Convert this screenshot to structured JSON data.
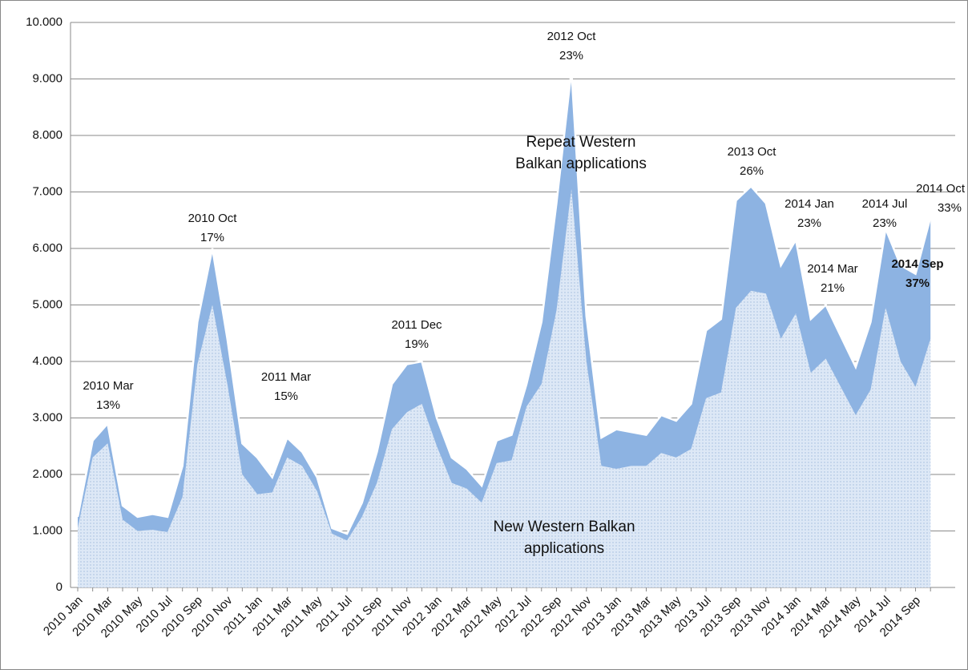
{
  "chart_data": {
    "type": "stacked_area",
    "categories": [
      "2010 Jan",
      null,
      "2010 Mar",
      null,
      "2010 May",
      null,
      "2010 Jul",
      null,
      "2010 Sep",
      null,
      "2010 Nov",
      null,
      "2011 Jan",
      null,
      "2011 Mar",
      null,
      "2011 May",
      null,
      "2011 Jul",
      null,
      "2011 Sep",
      null,
      "2011 Nov",
      null,
      "2012 Jan",
      null,
      "2012 Mar",
      null,
      "2012 May",
      null,
      "2012 Jul",
      null,
      "2012 Sep",
      null,
      "2012 Nov",
      null,
      "2013 Jan",
      null,
      "2013 Mar",
      null,
      "2013 May",
      null,
      "2013 Jul",
      null,
      "2013 Sep",
      null,
      "2013 Nov",
      null,
      "2014 Jan",
      null,
      "2014 Mar",
      null,
      "2014 May",
      null,
      "2014 Jul",
      null,
      "2014 Sep",
      null
    ],
    "series": [
      {
        "name": [
          "New Western Balkan",
          "applications"
        ],
        "color": "#dde8f6",
        "values": [
          1050,
          2300,
          2550,
          1200,
          1000,
          1020,
          980,
          1600,
          3950,
          5000,
          3600,
          2000,
          1650,
          1680,
          2300,
          2150,
          1700,
          950,
          830,
          1250,
          1850,
          2800,
          3100,
          3250,
          2500,
          1850,
          1750,
          1500,
          2200,
          2250,
          3200,
          3600,
          4900,
          7050,
          4000,
          2150,
          2100,
          2150,
          2150,
          2380,
          2300,
          2450,
          3350,
          3450,
          4950,
          5250,
          5200,
          4400,
          4850,
          3800,
          4050,
          3550,
          3050,
          3500,
          4950,
          4000,
          3550,
          4400
        ]
      },
      {
        "name": [
          "Repeat Western",
          "Balkan applications"
        ],
        "color": "#8db3e2",
        "values": [
          200,
          300,
          350,
          250,
          250,
          280,
          270,
          550,
          750,
          1000,
          800,
          550,
          650,
          270,
          350,
          250,
          250,
          100,
          120,
          250,
          550,
          800,
          850,
          750,
          500,
          450,
          350,
          300,
          400,
          450,
          400,
          1100,
          1900,
          2100,
          800,
          500,
          700,
          600,
          550,
          670,
          650,
          800,
          1200,
          1300,
          1900,
          1850,
          1600,
          1300,
          1300,
          950,
          950,
          900,
          850,
          1200,
          1400,
          1700,
          2000,
          2150
        ]
      }
    ],
    "annotations": [
      {
        "label": "2010 Mar",
        "share": "13%"
      },
      {
        "label": "2010 Oct",
        "share": "17%"
      },
      {
        "label": "2011 Mar",
        "share": "15%"
      },
      {
        "label": "2011 Dec",
        "share": "19%"
      },
      {
        "label": "2012 Oct",
        "share": "23%"
      },
      {
        "label": "2013 Oct",
        "share": "26%"
      },
      {
        "label": "2014 Jan",
        "share": "23%"
      },
      {
        "label": "2014 Mar",
        "share": "21%"
      },
      {
        "label": "2014 Jul",
        "share": "23%"
      },
      {
        "label": "2014 Oct",
        "share": "33%"
      },
      {
        "label": "2014 Sep",
        "share": "37%",
        "color": "#c00000"
      }
    ],
    "ylim": [
      0,
      10000
    ],
    "yticks": [
      0,
      {
        "value": 1000,
        "label": "1.000"
      },
      {
        "value": 2000,
        "label": "2.000"
      },
      {
        "value": 3000,
        "label": "3.000"
      },
      {
        "value": 4000,
        "label": "4.000"
      },
      {
        "value": 5000,
        "label": "5.000"
      },
      {
        "value": 6000,
        "label": "6.000"
      },
      {
        "value": 7000,
        "label": "7.000"
      },
      {
        "value": 8000,
        "label": "8.000"
      },
      {
        "value": 9000,
        "label": "9.000"
      },
      {
        "value": 10000,
        "label": "10.000"
      }
    ],
    "grid": true
  }
}
